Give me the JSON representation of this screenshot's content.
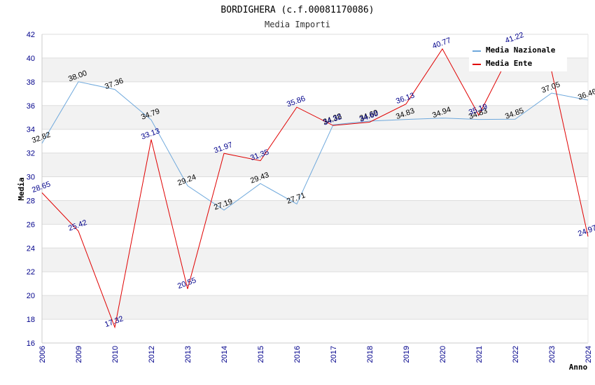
{
  "chart_data": {
    "type": "line",
    "title": "BORDIGHERA (c.f.00081170086)",
    "subtitle": "Media Importi",
    "xlabel": "Anno",
    "ylabel": "Media",
    "ylim": [
      16,
      42
    ],
    "yticks": [
      16,
      18,
      20,
      22,
      24,
      26,
      28,
      30,
      32,
      34,
      36,
      38,
      40,
      42
    ],
    "categories": [
      "2006",
      "2009",
      "2010",
      "2012",
      "2013",
      "2014",
      "2015",
      "2016",
      "2017",
      "2018",
      "2019",
      "2020",
      "2021",
      "2022",
      "2023",
      "2024"
    ],
    "series": [
      {
        "name": "Media Nazionale",
        "color": "#6ea8dc",
        "label_color": "#000000",
        "values": [
          32.82,
          38.0,
          37.36,
          34.79,
          29.24,
          27.19,
          29.43,
          27.71,
          34.38,
          34.69,
          34.83,
          34.94,
          34.83,
          34.85,
          37.05,
          36.46
        ],
        "labels": [
          "32.82",
          "38.00",
          "37.36",
          "34.79",
          "29.24",
          "27.19",
          "29.43",
          "27.71",
          "34.38",
          "34.69",
          "34.83",
          "34.94",
          "34.83",
          "34.85",
          "37.05",
          "36.46"
        ]
      },
      {
        "name": "Media Ente",
        "color": "#e00000",
        "label_color": "#00008b",
        "values": [
          28.65,
          25.42,
          17.32,
          33.13,
          20.55,
          31.97,
          31.35,
          35.86,
          34.32,
          34.6,
          36.13,
          40.77,
          35.19,
          41.22,
          38.9,
          24.97
        ],
        "labels": [
          "28.65",
          "25.42",
          "17.32",
          "33.13",
          "20.55",
          "31.97",
          "31.35",
          "35.86",
          "34.32",
          "34.60",
          "36.13",
          "40.77",
          "35.19",
          "41.22",
          "",
          "24.97"
        ]
      }
    ],
    "legend_position": "top-right",
    "grid": true
  }
}
